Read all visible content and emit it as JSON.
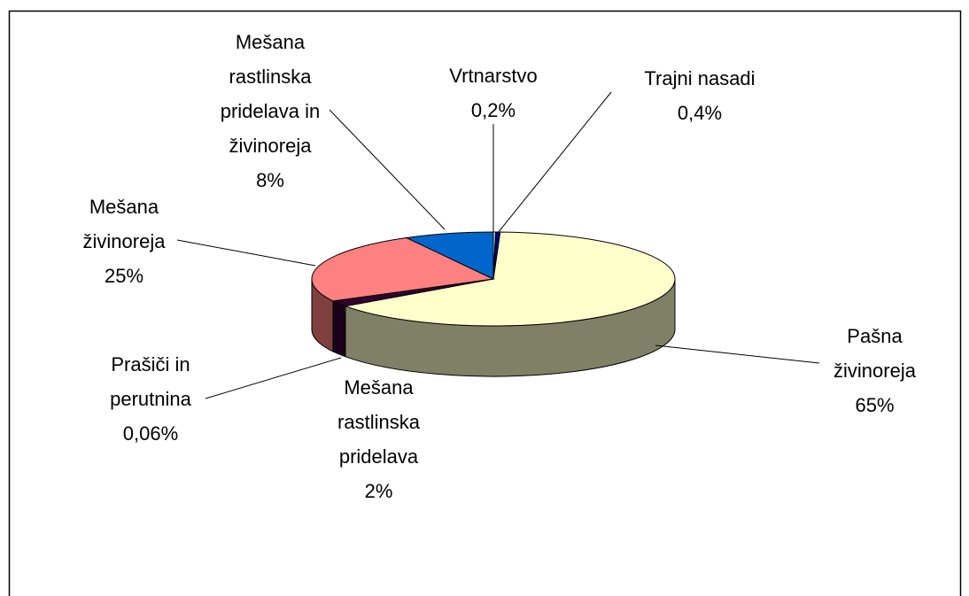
{
  "chart_data": {
    "type": "pie3d",
    "categories": [
      "Pašna živinoreja",
      "Mešana rastlinska pridelava",
      "Prašiči in perutnina",
      "Mešana živinoreja",
      "Mešana rastlinska pridelava in živinoreja",
      "Vrtnarstvo",
      "Trajni nasadi"
    ],
    "values": [
      65,
      2,
      0.06,
      25,
      8,
      0.2,
      0.4
    ],
    "value_labels": [
      "65%",
      "2%",
      "0,06%",
      "25%",
      "8%",
      "0,2%",
      "0,4%"
    ],
    "colors": [
      "#FFFFCC",
      "#330033",
      "#800080",
      "#FF8080",
      "#0066CC",
      "#CCFFFF",
      "#000080"
    ]
  }
}
